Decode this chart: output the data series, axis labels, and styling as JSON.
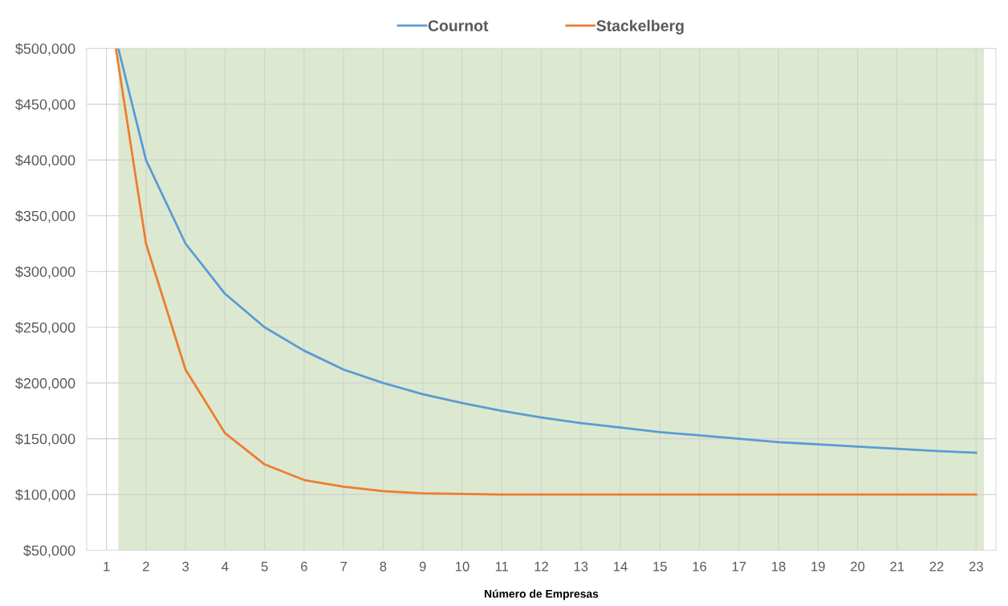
{
  "chart_data": {
    "type": "line",
    "xlabel": "Número de Empresas",
    "xlim": [
      0.5,
      23.5
    ],
    "xticks": [
      1,
      2,
      3,
      4,
      5,
      6,
      7,
      8,
      9,
      10,
      11,
      12,
      13,
      14,
      15,
      16,
      17,
      18,
      19,
      20,
      21,
      22,
      23
    ],
    "ylim": [
      50000,
      500000
    ],
    "yticks": [
      {
        "value": 50000,
        "label": "$50,000"
      },
      {
        "value": 100000,
        "label": "$100,000"
      },
      {
        "value": 150000,
        "label": "$150,000"
      },
      {
        "value": 200000,
        "label": "$200,000"
      },
      {
        "value": 250000,
        "label": "$250,000"
      },
      {
        "value": 300000,
        "label": "$300,000"
      },
      {
        "value": 350000,
        "label": "$350,000"
      },
      {
        "value": 400000,
        "label": "$400,000"
      },
      {
        "value": 450000,
        "label": "$450,000"
      },
      {
        "value": 500000,
        "label": "$500,000"
      }
    ],
    "series": [
      {
        "name": "Cournot",
        "color": "#5b9bd5",
        "x": [
          1.3,
          2,
          3,
          4,
          5,
          6,
          7,
          8,
          9,
          10,
          11,
          12,
          13,
          14,
          15,
          16,
          17,
          18,
          19,
          20,
          21,
          22,
          23
        ],
        "values": [
          500000,
          400000,
          325000,
          280000,
          250000,
          229000,
          212000,
          200000,
          190000,
          182000,
          175000,
          169000,
          164000,
          160000,
          156000,
          153000,
          150000,
          147000,
          145000,
          143000,
          141000,
          139000,
          137500
        ]
      },
      {
        "name": "Stackelberg",
        "color": "#ed7d31",
        "x": [
          1.24,
          2,
          3,
          4,
          5,
          6,
          7,
          8,
          9,
          10,
          11,
          12,
          13,
          14,
          15,
          16,
          17,
          18,
          19,
          20,
          21,
          22,
          23
        ],
        "values": [
          500000,
          325000,
          212000,
          155000,
          127000,
          113000,
          107000,
          103000,
          101000,
          100500,
          100000,
          100000,
          100000,
          100000,
          100000,
          100000,
          100000,
          100000,
          100000,
          100000,
          100000,
          100000,
          100000
        ]
      }
    ],
    "bands": [
      {
        "axis": "x",
        "from": 1.3,
        "to": 23.2,
        "color": "#dce9d0"
      }
    ],
    "grid": true,
    "legend": "top",
    "marker": "none",
    "line_style": "solid"
  }
}
